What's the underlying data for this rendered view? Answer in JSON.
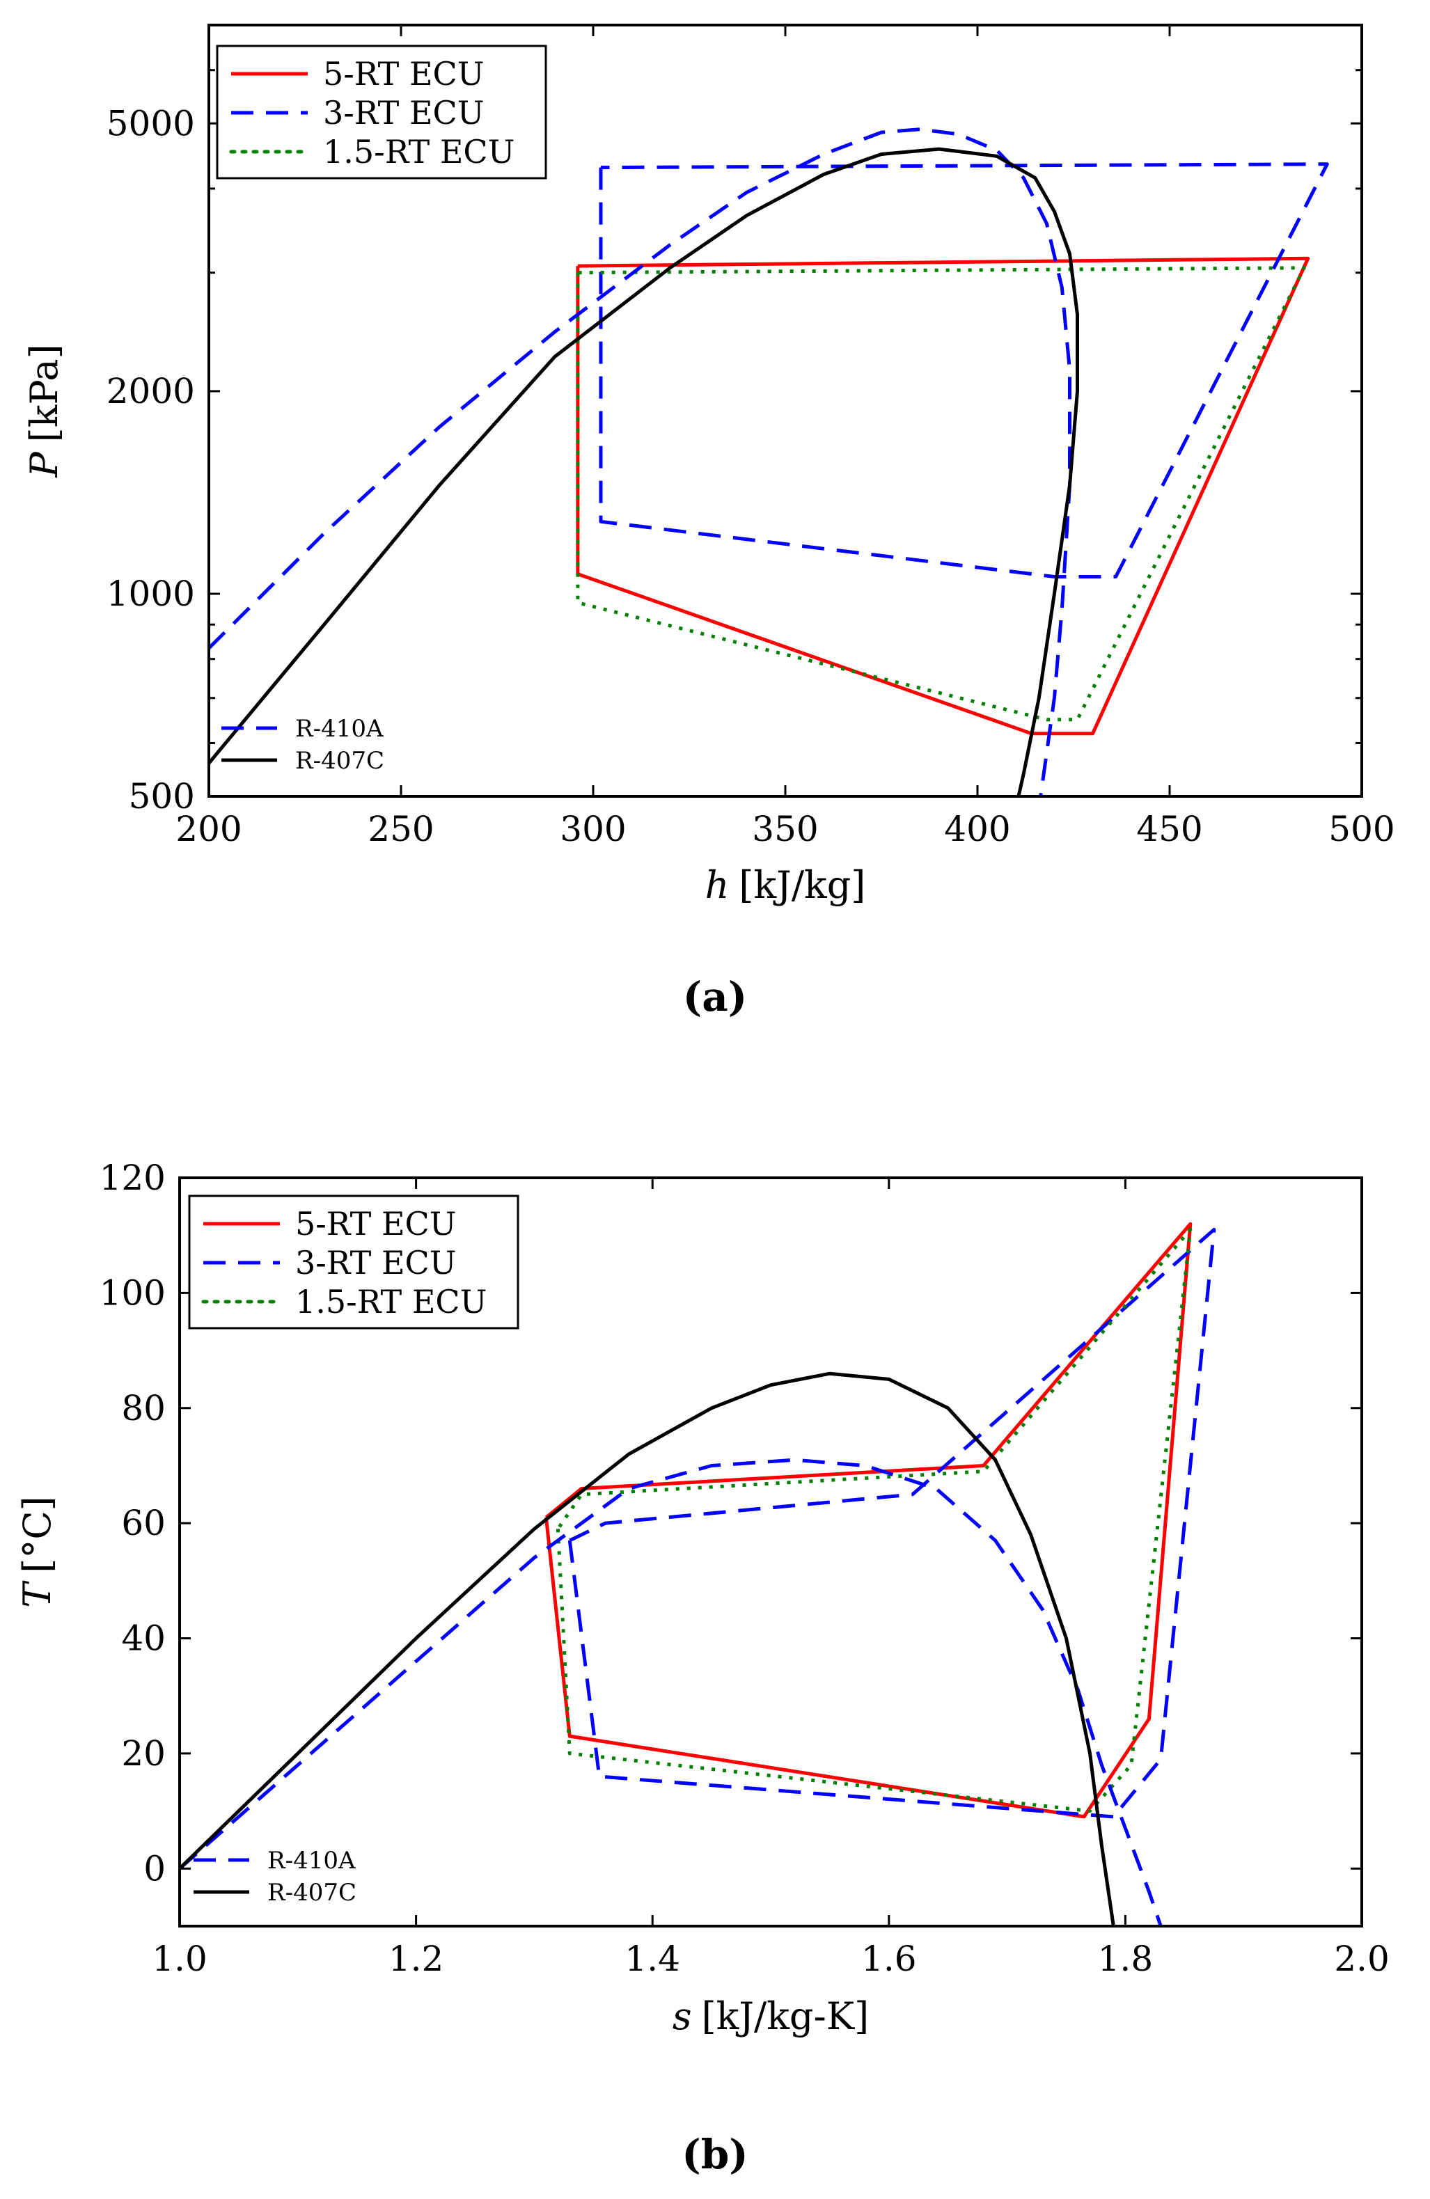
{
  "chart_data": [
    {
      "type": "line",
      "panel": "a",
      "caption": "(a)",
      "xlabel": {
        "var": "h",
        "unit": "[kJ/kg]"
      },
      "ylabel": {
        "var": "P",
        "unit": "[kPa]"
      },
      "yscale": "log",
      "xlim": [
        200,
        500
      ],
      "ylim": [
        500,
        7000
      ],
      "xticks": [
        200,
        250,
        300,
        350,
        400,
        450,
        500
      ],
      "xtick_labels": [
        "200",
        "250",
        "300",
        "350",
        "400",
        "450",
        "500"
      ],
      "yticks": [
        500,
        1000,
        2000,
        5000
      ],
      "ytick_labels": [
        "500",
        "1000",
        "2000",
        "5000"
      ],
      "legend_position": "top-left",
      "fluid_legend_position": "bottom-left",
      "series": [
        {
          "name": "5-RT ECU",
          "color": "#ff0000",
          "dash": "solid",
          "legend": "cycle",
          "x": [
            296,
            296,
            414,
            430,
            486,
            296
          ],
          "y": [
            3070,
            1070,
            620,
            620,
            3150,
            3070
          ]
        },
        {
          "name": "3-RT ECU",
          "color": "#0000ff",
          "dash": "dashed",
          "legend": "cycle",
          "x": [
            302,
            302,
            420,
            436,
            491,
            302
          ],
          "y": [
            4300,
            1280,
            1060,
            1060,
            4350,
            4300
          ]
        },
        {
          "name": "1.5-RT ECU",
          "color": "#007f00",
          "dash": "dotted",
          "legend": "cycle",
          "x": [
            296,
            296,
            418,
            426,
            485,
            296
          ],
          "y": [
            3000,
            970,
            650,
            650,
            3050,
            3000
          ]
        },
        {
          "name": "R-410A",
          "color": "#0000ff",
          "dash": "dashed",
          "legend": "fluid",
          "x": [
            200,
            230,
            260,
            290,
            320,
            340,
            360,
            375,
            385,
            395,
            405,
            412,
            418,
            422,
            424,
            424,
            422,
            420,
            416
          ],
          "y": [
            830,
            1230,
            1770,
            2450,
            3300,
            3950,
            4500,
            4850,
            4900,
            4820,
            4560,
            4150,
            3550,
            2850,
            2150,
            1450,
            950,
            700,
            480
          ]
        },
        {
          "name": "R-407C",
          "color": "#000000",
          "dash": "solid",
          "legend": "fluid",
          "x": [
            200,
            230,
            260,
            290,
            320,
            340,
            360,
            375,
            390,
            405,
            415,
            420,
            424,
            426,
            426,
            424,
            420,
            416,
            412,
            410
          ],
          "y": [
            560,
            900,
            1450,
            2250,
            3050,
            3650,
            4200,
            4500,
            4580,
            4470,
            4150,
            3700,
            3200,
            2600,
            2000,
            1450,
            1000,
            700,
            540,
            480
          ]
        }
      ]
    },
    {
      "type": "line",
      "panel": "b",
      "caption": "(b)",
      "xlabel": {
        "var": "s",
        "unit": "[kJ/kg-K]"
      },
      "ylabel": {
        "var": "T",
        "unit": "[°C]"
      },
      "xlim": [
        1.0,
        2.0
      ],
      "ylim": [
        -10,
        120
      ],
      "xticks": [
        1.0,
        1.2,
        1.4,
        1.6,
        1.8,
        2.0
      ],
      "xtick_labels": [
        "1.0",
        "1.2",
        "1.4",
        "1.6",
        "1.8",
        "2.0"
      ],
      "yticks": [
        0,
        20,
        40,
        60,
        80,
        100,
        120
      ],
      "ytick_labels": [
        "0",
        "20",
        "40",
        "60",
        "80",
        "100",
        "120"
      ],
      "legend_position": "top-left",
      "fluid_legend_position": "bottom-left",
      "series": [
        {
          "name": "5-RT ECU",
          "color": "#ff0000",
          "dash": "solid",
          "legend": "cycle",
          "x": [
            1.31,
            1.33,
            1.765,
            1.82,
            1.855,
            1.68,
            1.34,
            1.31
          ],
          "y": [
            61,
            23,
            9,
            26,
            112,
            70,
            66,
            61
          ]
        },
        {
          "name": "3-RT ECU",
          "color": "#0000ff",
          "dash": "dashed",
          "legend": "cycle",
          "x": [
            1.33,
            1.355,
            1.79,
            1.83,
            1.875,
            1.62,
            1.36,
            1.33
          ],
          "y": [
            57,
            16,
            9,
            19,
            111,
            65,
            60,
            57
          ]
        },
        {
          "name": "1.5-RT ECU",
          "color": "#007f00",
          "dash": "dotted",
          "legend": "cycle",
          "x": [
            1.32,
            1.33,
            1.77,
            1.805,
            1.855,
            1.68,
            1.34,
            1.32
          ],
          "y": [
            59,
            20,
            10,
            18,
            111,
            69,
            65,
            59
          ]
        },
        {
          "name": "R-410A",
          "color": "#0000ff",
          "dash": "dashed",
          "legend": "fluid",
          "x": [
            1.0,
            1.1,
            1.2,
            1.3,
            1.38,
            1.45,
            1.52,
            1.58,
            1.64,
            1.69,
            1.73,
            1.76,
            1.78,
            1.8,
            1.82,
            1.83
          ],
          "y": [
            0,
            18,
            36,
            54,
            66,
            70,
            71,
            70,
            66,
            57,
            45,
            31,
            18,
            7,
            -4,
            -10
          ]
        },
        {
          "name": "R-407C",
          "color": "#000000",
          "dash": "solid",
          "legend": "fluid",
          "x": [
            1.0,
            1.1,
            1.2,
            1.3,
            1.38,
            1.45,
            1.5,
            1.55,
            1.6,
            1.65,
            1.69,
            1.72,
            1.75,
            1.77,
            1.78,
            1.79
          ],
          "y": [
            0,
            20,
            40,
            59,
            72,
            80,
            84,
            86,
            85,
            80,
            71,
            58,
            40,
            20,
            4,
            -10
          ]
        }
      ]
    }
  ]
}
